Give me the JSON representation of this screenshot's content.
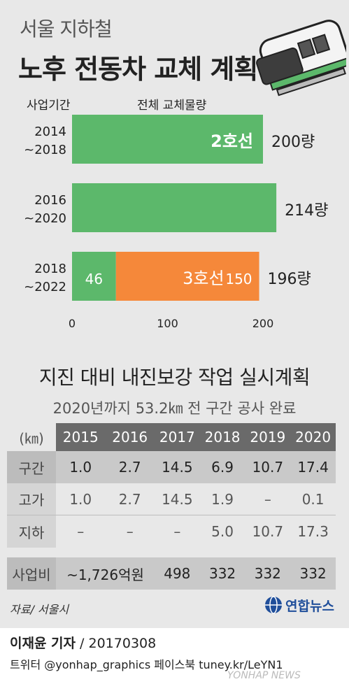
{
  "header": {
    "subtitle": "서울 지하철",
    "title": "노후 전동차 교체 계획"
  },
  "chart_data": {
    "type": "bar",
    "orientation": "horizontal",
    "stacked": true,
    "period_header": "사업기간",
    "quantity_header": "전체 교체물량",
    "categories": [
      "2014\n~2018",
      "2016\n~2020",
      "2018\n~2022"
    ],
    "category_lines": [
      [
        "2014",
        "~2018"
      ],
      [
        "2016",
        "~2020"
      ],
      [
        "2018",
        "~2022"
      ]
    ],
    "series": [
      {
        "name": "2호선",
        "values": [
          200,
          214,
          46
        ],
        "color": "#5cb86b"
      },
      {
        "name": "3호선",
        "values": [
          0,
          0,
          150
        ],
        "color": "#f5883a"
      }
    ],
    "inner_labels": [
      "2호선",
      "",
      "46"
    ],
    "orange_label": "3호선",
    "orange_value_label": "150",
    "totals": [
      "200량",
      "214량",
      "196량"
    ],
    "xticks": [
      0,
      100,
      200
    ],
    "xlim": [
      0,
      200
    ],
    "grid": false
  },
  "section2": {
    "title": "지진 대비 내진보강 작업 실시계획",
    "subtitle": "2020년까지 53.2㎞ 전 구간 공사 완료"
  },
  "table": {
    "unit": "(㎞)",
    "years": [
      "2015",
      "2016",
      "2017",
      "2018",
      "2019",
      "2020"
    ],
    "rows": [
      {
        "label": "구간",
        "values": [
          "1.0",
          "2.7",
          "14.5",
          "6.9",
          "10.7",
          "17.4"
        ]
      },
      {
        "label": "고가",
        "values": [
          "1.0",
          "2.7",
          "14.5",
          "1.9",
          "–",
          "0.1"
        ]
      },
      {
        "label": "지하",
        "values": [
          "–",
          "–",
          "–",
          "5.0",
          "10.7",
          "17.3"
        ]
      }
    ],
    "cost": {
      "label": "사업비",
      "first": "~1,726억원",
      "values": [
        "498",
        "332",
        "332",
        "332"
      ]
    }
  },
  "footer": {
    "source": "자료/ 서울시",
    "logo": "연합뉴스",
    "reporter_name": "이재윤 기자",
    "reporter_date": " / 20170308",
    "twitter": "트위터 @yonhap_graphics  페이스북 tuney.kr/LeYN1",
    "watermark": "YONHAP NEWS"
  },
  "colors": {
    "green": "#5cb86b",
    "orange": "#f5883a",
    "panel": "#e8e8e8"
  }
}
